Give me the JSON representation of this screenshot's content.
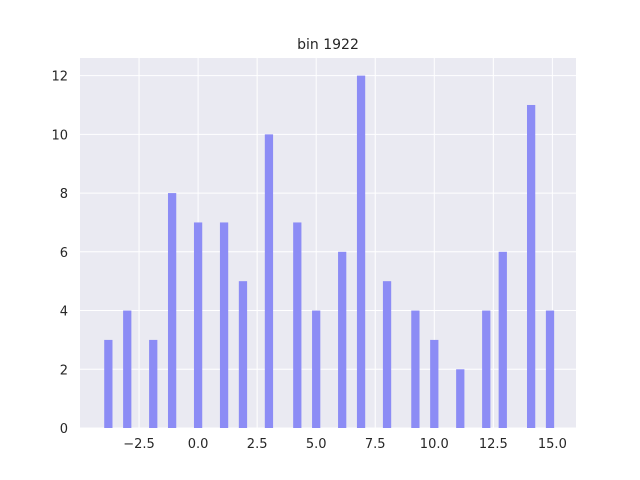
{
  "chart_data": {
    "type": "bar",
    "title": "bin 1922",
    "xlabel": "",
    "ylabel": "",
    "xlim": [
      -5.0,
      16.0
    ],
    "ylim": [
      0,
      12.6
    ],
    "x_ticks": [
      -2.5,
      0.0,
      2.5,
      5.0,
      7.5,
      10.0,
      12.5,
      15.0
    ],
    "x_tick_labels": [
      "−2.5",
      "0.0",
      "2.5",
      "5.0",
      "7.5",
      "10.0",
      "12.5",
      "15.0"
    ],
    "y_ticks": [
      0,
      2,
      4,
      6,
      8,
      10,
      12
    ],
    "y_tick_labels": [
      "0",
      "2",
      "4",
      "6",
      "8",
      "10",
      "12"
    ],
    "bar_color": "#8c8cf5",
    "background_color": "#eaeaf2",
    "grid_color": "#ffffff",
    "grid": true,
    "bars": [
      {
        "x": -3.8,
        "value": 3
      },
      {
        "x": -3.0,
        "value": 4
      },
      {
        "x": -1.9,
        "value": 3
      },
      {
        "x": -1.1,
        "value": 8
      },
      {
        "x": 0.0,
        "value": 7
      },
      {
        "x": 1.1,
        "value": 7
      },
      {
        "x": 1.9,
        "value": 5
      },
      {
        "x": 3.0,
        "value": 10
      },
      {
        "x": 4.2,
        "value": 7
      },
      {
        "x": 5.0,
        "value": 4
      },
      {
        "x": 6.1,
        "value": 6
      },
      {
        "x": 6.9,
        "value": 12
      },
      {
        "x": 8.0,
        "value": 5
      },
      {
        "x": 9.2,
        "value": 4
      },
      {
        "x": 10.0,
        "value": 3
      },
      {
        "x": 11.1,
        "value": 2
      },
      {
        "x": 12.2,
        "value": 4
      },
      {
        "x": 12.9,
        "value": 6
      },
      {
        "x": 14.1,
        "value": 11
      },
      {
        "x": 14.9,
        "value": 4
      }
    ]
  }
}
